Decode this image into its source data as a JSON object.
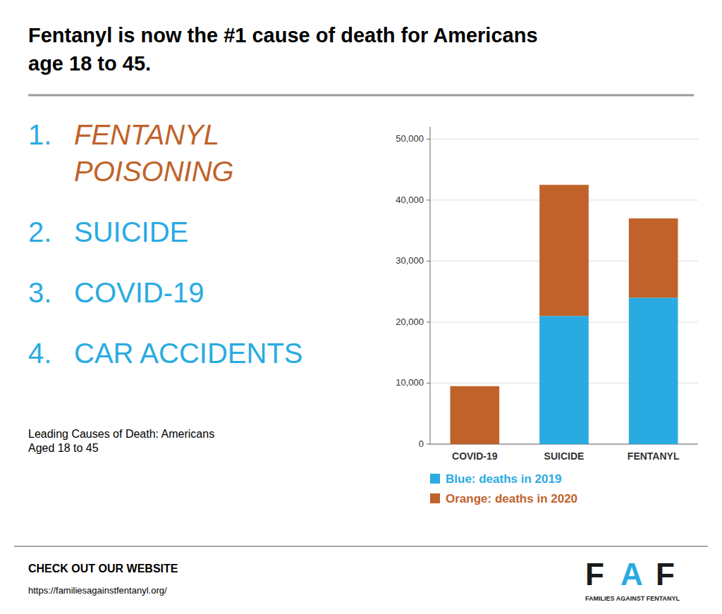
{
  "chart_data": {
    "type": "bar",
    "title": "Fentanyl is now the #1 cause of death for Americans\nage 18 to 45.",
    "subtitle": "Leading Causes of Death: Americans\nAged 18 to 45",
    "list": [
      {
        "rank": "1.",
        "text": "FENTANYL\nPOISONING",
        "color": "#c0622a"
      },
      {
        "rank": "2.",
        "text": "SUICIDE",
        "color": "#29abe2"
      },
      {
        "rank": "3.",
        "text": "COVID-19",
        "color": "#29abe2"
      },
      {
        "rank": "4.",
        "text": "CAR ACCIDENTS",
        "color": "#29abe2"
      }
    ],
    "categories": [
      "COVID-19",
      "SUICIDE",
      "FENTANYL"
    ],
    "series": [
      {
        "name": "Blue: deaths in 2019",
        "color": "#29abe2",
        "values": [
          0,
          21000,
          24000
        ]
      },
      {
        "name": "Orange: deaths in 2020",
        "color": "#c0622a",
        "values": [
          9500,
          21500,
          13000
        ]
      }
    ],
    "stacked": true,
    "ylim": [
      0,
      52000
    ],
    "yticks": [
      0,
      {
        "value": 10000,
        "label": "10,000"
      },
      {
        "value": 20000,
        "label": "20,000"
      },
      {
        "value": 30000,
        "label": "30,000"
      },
      {
        "value": 40000,
        "label": "40,000"
      },
      {
        "value": 50000,
        "label": "50,000"
      }
    ],
    "grid": true,
    "legend": "bottom",
    "footer": [
      "CHECK OUT OUR WEBSITE",
      "https://familiesagainstfentanyl.org/"
    ],
    "logo": {
      "letters": [
        "F",
        "A",
        "F"
      ],
      "colors": [
        "#1a1a1a",
        "#29abe2",
        "#1a1a1a"
      ],
      "text": "FAMILIES AGAINST FENTANYL"
    }
  }
}
